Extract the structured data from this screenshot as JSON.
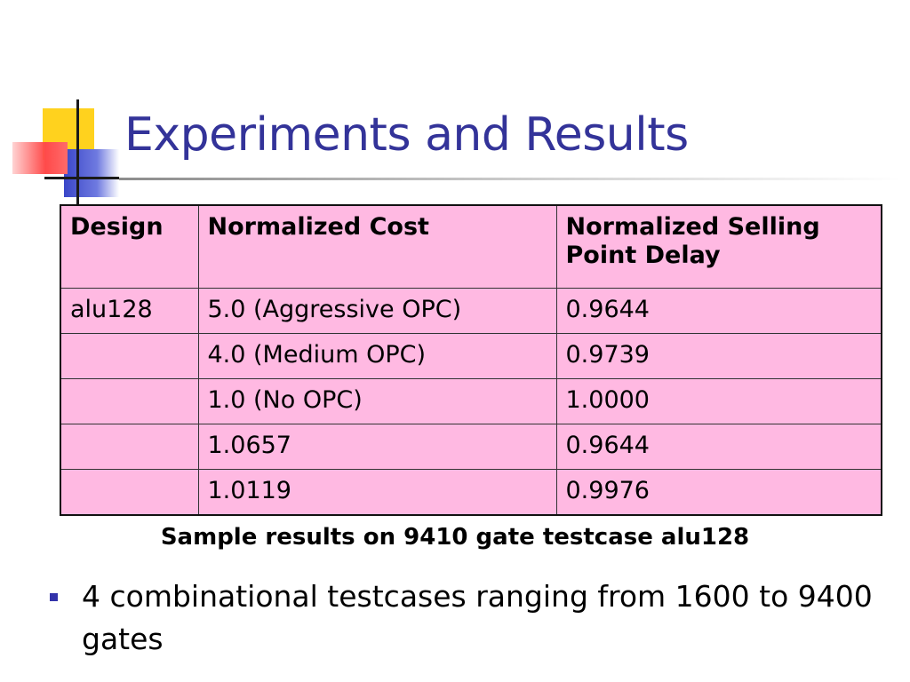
{
  "slide": {
    "title": "Experiments and Results",
    "table": {
      "headers": [
        "Design",
        "Normalized Cost",
        "Normalized Selling Point Delay"
      ],
      "rows": [
        [
          "alu128",
          "5.0 (Aggressive OPC)",
          "0.9644"
        ],
        [
          "",
          "4.0 (Medium OPC)",
          "0.9739"
        ],
        [
          "",
          "1.0 (No OPC)",
          "1.0000"
        ],
        [
          "",
          "1.0657",
          "0.9644"
        ],
        [
          "",
          "1.0119",
          "0.9976"
        ]
      ]
    },
    "caption": "Sample results on 9410 gate testcase alu128",
    "bullets": [
      "4 combinational testcases ranging from 1600 to 9400 gates"
    ]
  },
  "colors": {
    "title": "#333399",
    "table_fill": "#ffb9e2",
    "bullet": "#3333aa"
  }
}
